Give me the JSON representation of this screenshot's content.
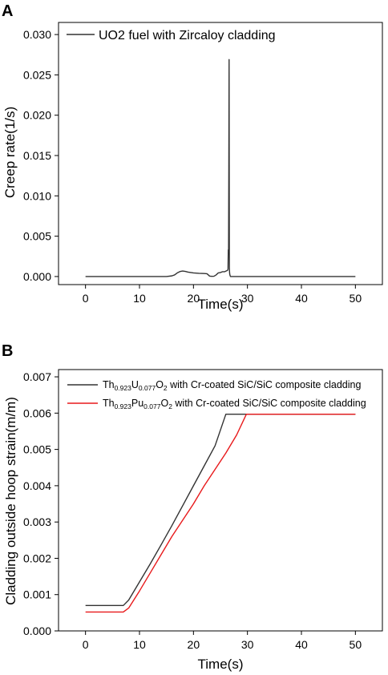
{
  "panels": [
    "A",
    "B"
  ],
  "chart_data": [
    {
      "type": "line",
      "panel_label": "A",
      "title": "",
      "xlabel": "Time(s)",
      "ylabel": "Creep rate(1/s)",
      "xlim": [
        -5,
        55
      ],
      "ylim": [
        -0.001,
        0.0315
      ],
      "x_ticks": [
        0,
        10,
        20,
        30,
        40,
        50
      ],
      "y_ticks": [
        0.0,
        0.005,
        0.01,
        0.015,
        0.02,
        0.025,
        0.03
      ],
      "x_tick_labels": [
        "0",
        "10",
        "20",
        "30",
        "40",
        "50"
      ],
      "y_tick_labels": [
        "0.000",
        "0.005",
        "0.010",
        "0.015",
        "0.020",
        "0.025",
        "0.030"
      ],
      "grid": false,
      "legend_position": "top-left",
      "series": [
        {
          "name": "UO2 fuel with Zircaloy cladding",
          "color": "#333333",
          "x": [
            0,
            15,
            16,
            16.5,
            17,
            17.5,
            18,
            18.5,
            19,
            20,
            21,
            22,
            22.5,
            23,
            23.4,
            23.8,
            24.2,
            24.6,
            25,
            25.4,
            25.8,
            26.1,
            26.3,
            26.4,
            26.45,
            26.5,
            26.55,
            26.6,
            26.65,
            26.7,
            26.75,
            26.8,
            26.85,
            27,
            30,
            40,
            50
          ],
          "y": [
            0,
            0,
            8e-05,
            0.0002,
            0.00045,
            0.00062,
            0.00068,
            0.00063,
            0.00055,
            0.00045,
            0.0004,
            0.00037,
            0.00035,
            5e-05,
            3e-05,
            4e-05,
            0.0002,
            0.00045,
            0.0005,
            0.0006,
            0.0006,
            0.0007,
            0.00075,
            0.0009,
            0.0033,
            0.0027,
            0.0135,
            0.0269,
            0.0011,
            0.0004,
            0.0002,
            0.0001,
            0,
            0,
            0,
            0,
            0
          ]
        }
      ]
    },
    {
      "type": "line",
      "panel_label": "B",
      "title": "",
      "xlabel": "Time(s)",
      "ylabel": "Cladding outside hoop strain(m/m)",
      "xlim": [
        -5,
        55
      ],
      "ylim": [
        0,
        0.0072
      ],
      "x_ticks": [
        0,
        10,
        20,
        30,
        40,
        50
      ],
      "y_ticks": [
        0.0,
        0.001,
        0.002,
        0.003,
        0.004,
        0.005,
        0.006,
        0.007
      ],
      "x_tick_labels": [
        "0",
        "10",
        "20",
        "30",
        "40",
        "50"
      ],
      "y_tick_labels": [
        "0.000",
        "0.001",
        "0.002",
        "0.003",
        "0.004",
        "0.005",
        "0.006",
        "0.007"
      ],
      "grid": false,
      "legend_position": "top-left",
      "legend_suffix": " with Cr-coated SiC/SiC composite cladding",
      "series": [
        {
          "name": "Th0.923U0.077O2 with Cr-coated SiC/SiC composite cladding",
          "legend_parts": [
            "Th",
            "0.923",
            "U",
            "0.077",
            "O",
            "2"
          ],
          "color": "#333333",
          "x": [
            0,
            7,
            8,
            10,
            12,
            14,
            16,
            18,
            20,
            22,
            24,
            26,
            30,
            40,
            50
          ],
          "y": [
            0.0007,
            0.0007,
            0.00085,
            0.00135,
            0.00185,
            0.00237,
            0.0029,
            0.00345,
            0.004,
            0.00455,
            0.0051,
            0.00597,
            0.00597,
            0.00597,
            0.00597
          ]
        },
        {
          "name": "Th0.923Pu0.077O2 with Cr-coated SiC/SiC composite cladding",
          "legend_parts": [
            "Th",
            "0.923",
            "Pu",
            "0.077",
            "O",
            "2"
          ],
          "color": "#e8191b",
          "x": [
            0,
            7,
            8,
            10,
            12,
            14,
            16,
            18,
            20,
            22,
            24,
            26,
            28,
            29.8,
            30,
            40,
            50
          ],
          "y": [
            0.00052,
            0.00052,
            0.00063,
            0.0011,
            0.0016,
            0.0021,
            0.0026,
            0.00305,
            0.0035,
            0.004,
            0.00445,
            0.0049,
            0.0054,
            0.00597,
            0.00597,
            0.00597,
            0.00597
          ]
        }
      ]
    }
  ]
}
